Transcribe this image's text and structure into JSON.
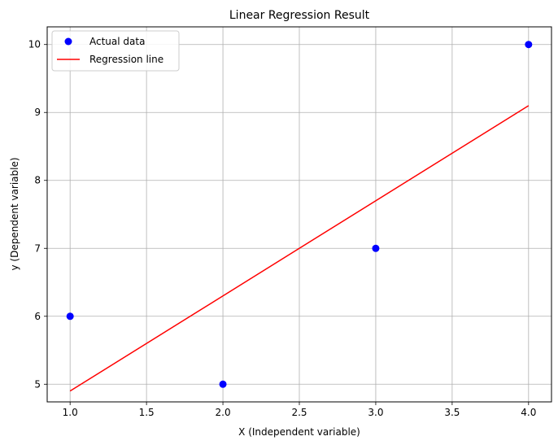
{
  "chart_data": {
    "type": "scatter",
    "title": "Linear Regression Result",
    "xlabel": "X (Independent variable)",
    "ylabel": "y (Dependent variable)",
    "xlim": [
      0.85,
      4.15
    ],
    "ylim": [
      4.74,
      10.26
    ],
    "xticks": [
      1.0,
      1.5,
      2.0,
      2.5,
      3.0,
      3.5,
      4.0
    ],
    "xtick_labels": [
      "1.0",
      "1.5",
      "2.0",
      "2.5",
      "3.0",
      "3.5",
      "4.0"
    ],
    "yticks": [
      5,
      6,
      7,
      8,
      9,
      10
    ],
    "ytick_labels": [
      "5",
      "6",
      "7",
      "8",
      "9",
      "10"
    ],
    "grid": true,
    "legend_position": "top-left",
    "series": [
      {
        "name": "Actual data",
        "kind": "scatter",
        "color": "#0000ff",
        "x": [
          1,
          2,
          3,
          4
        ],
        "y": [
          6,
          5,
          7,
          10
        ]
      },
      {
        "name": "Regression line",
        "kind": "line",
        "color": "#ff0000",
        "x": [
          1,
          4
        ],
        "y": [
          4.9,
          9.1
        ]
      }
    ]
  }
}
